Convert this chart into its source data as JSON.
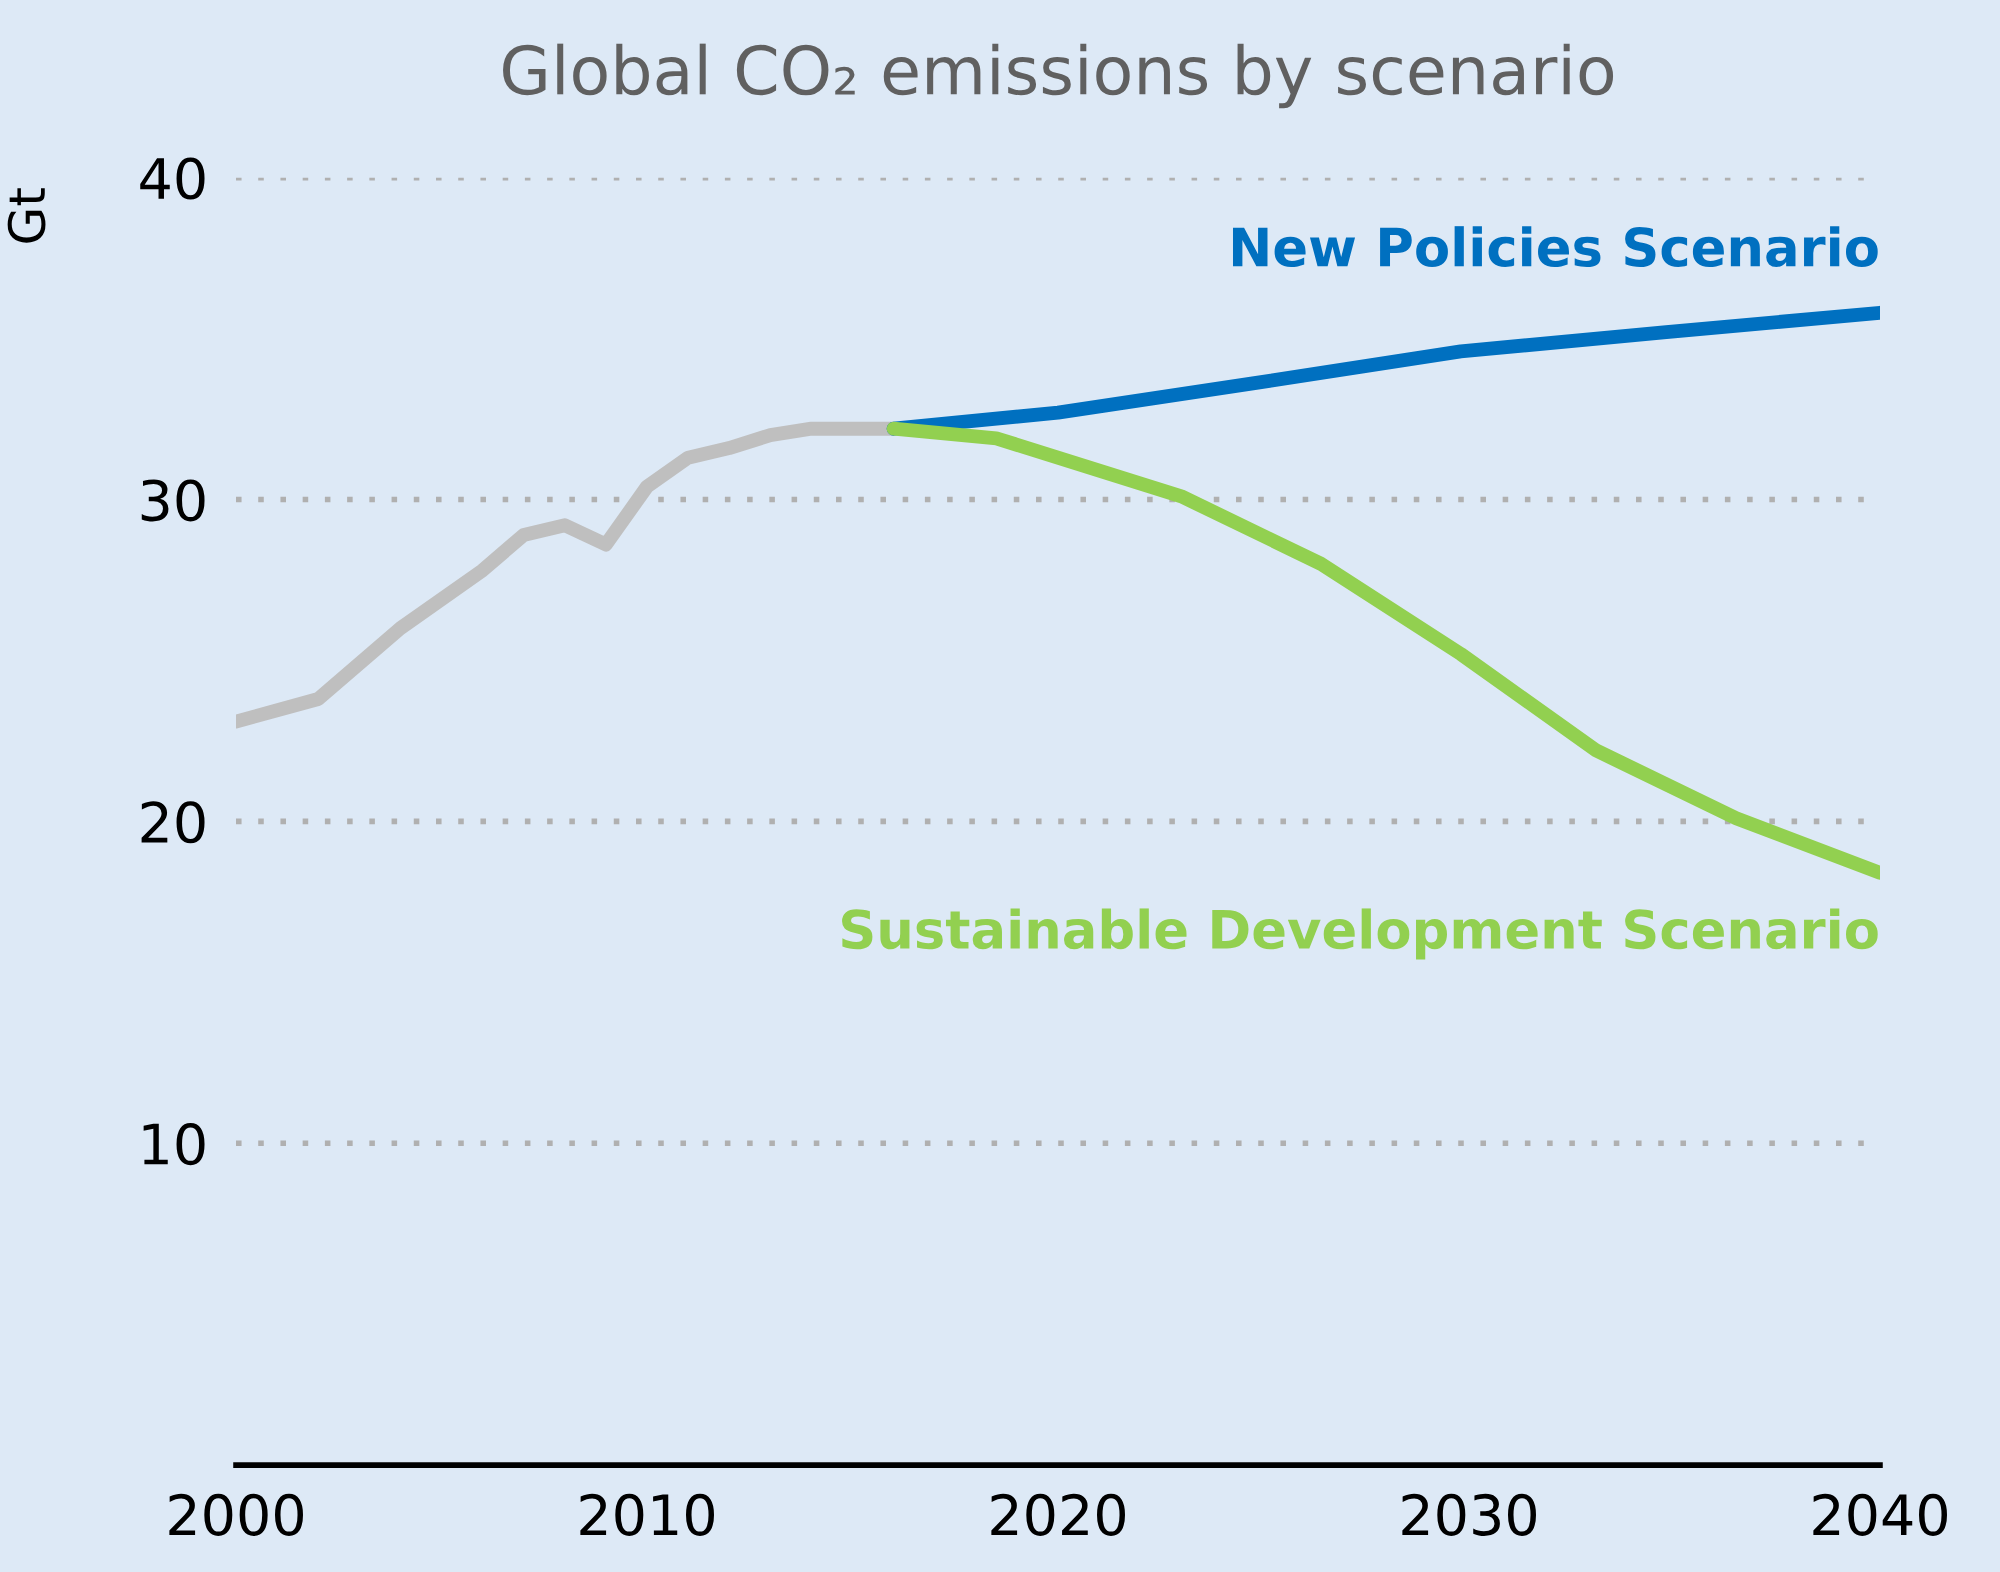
{
  "chart_data": {
    "type": "line",
    "title": "Global CO₂ emissions by scenario",
    "ylabel": "Gt",
    "xlim": [
      2000,
      2040
    ],
    "xticks": [
      2000,
      2010,
      2020,
      2030,
      2040
    ],
    "ylim": [
      0,
      40
    ],
    "yticks": [
      10,
      20,
      30,
      40
    ],
    "grid": "y",
    "legend": false,
    "marker": "none",
    "line_style": "solid",
    "series": [
      {
        "color": "#bfbfbf",
        "x": [
          2000,
          2002,
          2004,
          2006,
          2007,
          2008,
          2009,
          2010,
          2011,
          2012,
          2013,
          2014,
          2016
        ],
        "values": [
          23.1,
          23.8,
          26.0,
          27.8,
          28.9,
          29.2,
          28.6,
          30.4,
          31.3,
          31.6,
          32.0,
          32.2,
          32.2
        ]
      },
      {
        "name": "New Policies Scenario",
        "color": "#0070c0",
        "x": [
          2016,
          2020,
          2024.7,
          2029.8,
          2034.8,
          2040
        ],
        "values": [
          32.2,
          32.7,
          33.6,
          34.6,
          35.2,
          35.8
        ]
      },
      {
        "name": "Sustainable Development Scenario",
        "color": "#92d050",
        "x": [
          2016,
          2018.5,
          2023,
          2026.4,
          2029.8,
          2033.1,
          2036.5,
          2040
        ],
        "values": [
          32.2,
          31.9,
          30.1,
          28.0,
          25.2,
          22.2,
          20.1,
          18.4
        ]
      }
    ]
  }
}
